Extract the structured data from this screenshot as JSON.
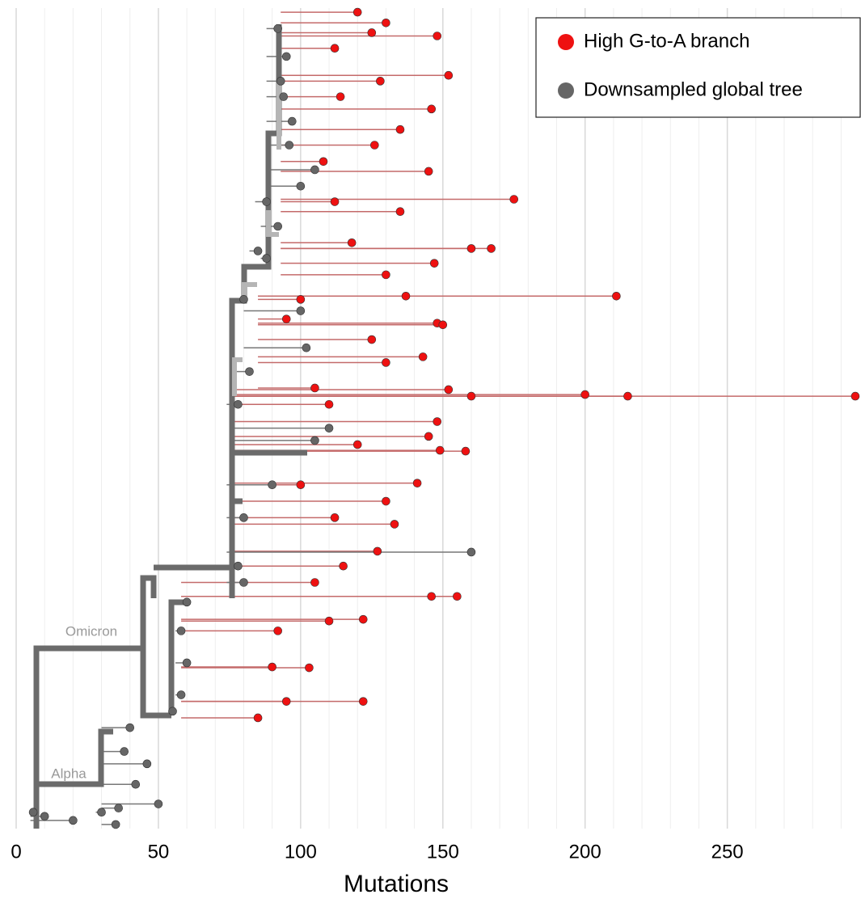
{
  "chart_data": {
    "type": "tree-scatter",
    "x_label": "Mutations",
    "annotations": [
      {
        "text": "Omicron"
      },
      {
        "text": "Alpha"
      }
    ],
    "xlim": [
      0,
      297
    ],
    "ylim": [
      0,
      100
    ],
    "xticks": [
      0,
      50,
      100,
      150,
      200,
      250
    ],
    "xminor_ticks": [
      10,
      20,
      30,
      40,
      60,
      70,
      80,
      90,
      110,
      120,
      130,
      140,
      160,
      170,
      180,
      190,
      210,
      220,
      230,
      240,
      260,
      270,
      280,
      290
    ],
    "grid": true,
    "legend": "upper right",
    "series": [
      {
        "name": "High G-to-A branch",
        "color": "#ee1111",
        "branch_color": "#c46a6a",
        "x": [
          120,
          130,
          148,
          125,
          152,
          146,
          135,
          126,
          145,
          175,
          135,
          167,
          160,
          147,
          130,
          137,
          211,
          148,
          150,
          143,
          130,
          160,
          200,
          215,
          295,
          152,
          148,
          145,
          158,
          149,
          141,
          130,
          133,
          127,
          146,
          155,
          122,
          110,
          103,
          122,
          95,
          85,
          100,
          95,
          110,
          112,
          100,
          105,
          92,
          90,
          115,
          120,
          125,
          118,
          112,
          108,
          114,
          112,
          128,
          105
        ],
        "y": [
          99.5,
          98.2,
          96.6,
          97.0,
          91.8,
          87.7,
          85.2,
          83.3,
          80.1,
          76.7,
          75.2,
          70.7,
          70.7,
          68.9,
          67.5,
          64.9,
          64.9,
          61.6,
          61.4,
          57.5,
          56.8,
          52.7,
          52.9,
          52.7,
          52.7,
          53.5,
          49.6,
          47.8,
          46.0,
          46.1,
          42.1,
          39.9,
          37.1,
          33.8,
          28.3,
          28.3,
          25.5,
          25.3,
          19.6,
          15.5,
          15.5,
          13.5,
          64.5,
          62.1,
          51.7,
          37.9,
          41.9,
          30.0,
          24.1,
          19.7,
          32.0,
          46.8,
          59.6,
          71.4,
          76.4,
          81.3,
          89.2,
          95.1,
          91.1,
          53.7
        ],
        "from": [
          93,
          93,
          93,
          93,
          93,
          93,
          93,
          93,
          93,
          93,
          93,
          93,
          93,
          93,
          93,
          85,
          85,
          85,
          85,
          85,
          85,
          75,
          75,
          75,
          75,
          75,
          75,
          75,
          75,
          75,
          75,
          75,
          75,
          75,
          58,
          58,
          58,
          58,
          58,
          58,
          58,
          58,
          85,
          85,
          75,
          75,
          75,
          58,
          58,
          58,
          75,
          75,
          85,
          93,
          93,
          93,
          93,
          93,
          93,
          85
        ]
      },
      {
        "name": "Downsampled global tree",
        "color": "#666666",
        "branch_color": "#777777",
        "x": [
          92,
          95,
          93,
          97,
          100,
          105,
          92,
          88,
          80,
          100,
          102,
          82,
          78,
          110,
          105,
          90,
          80,
          160,
          78,
          80,
          60,
          58,
          60,
          55,
          58,
          40,
          38,
          46,
          42,
          50,
          36,
          30,
          10,
          6,
          20,
          35,
          85,
          88,
          96,
          94
        ],
        "y": [
          97.5,
          94.1,
          91.1,
          86.2,
          78.3,
          80.3,
          73.4,
          69.5,
          64.5,
          63.1,
          58.6,
          55.7,
          51.7,
          48.8,
          47.3,
          41.9,
          37.9,
          33.7,
          32.0,
          30.0,
          27.6,
          24.1,
          20.2,
          14.3,
          16.3,
          12.3,
          9.4,
          7.9,
          5.4,
          3.0,
          2.5,
          2.0,
          1.5,
          2.0,
          1.0,
          0.5,
          70.4,
          76.4,
          83.3,
          89.2
        ],
        "from": [
          88,
          88,
          88,
          88,
          88,
          88,
          86,
          86,
          76,
          80,
          80,
          76,
          74,
          76,
          76,
          74,
          74,
          74,
          74,
          74,
          56,
          56,
          56,
          54,
          56,
          30,
          30,
          30,
          30,
          30,
          30,
          28,
          5,
          5,
          5,
          30,
          82,
          84,
          88,
          88
        ]
      }
    ]
  }
}
